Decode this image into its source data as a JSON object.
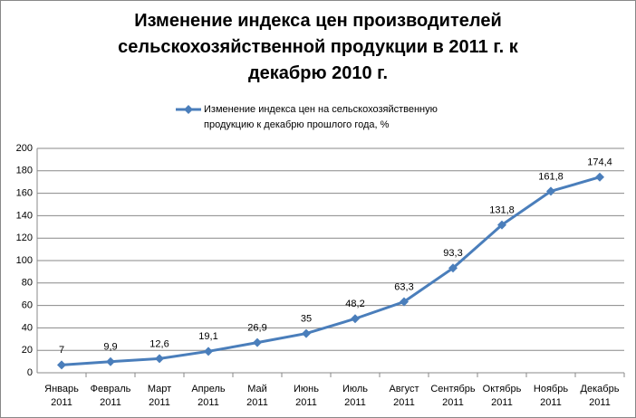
{
  "chart_data": {
    "type": "line",
    "title": "Изменение индекса цен производителей сельскохозяйственной продукции в 2011 г. к декабрю 2010 г.",
    "categories": [
      "Январь 2011",
      "Февраль 2011",
      "Март 2011",
      "Апрель 2011",
      "Май 2011",
      "Июнь 2011",
      "Июль 2011",
      "Август 2011",
      "Сентябрь 2011",
      "Октябрь 2011",
      "Ноябрь 2011",
      "Декабрь 2011"
    ],
    "series": [
      {
        "name": "Изменение  индекса цен на сельскохозяйственную продукцию  к декабрю прошлого года, %",
        "color": "#4a7ebb",
        "values": [
          7,
          9.9,
          12.6,
          19.1,
          26.9,
          35,
          48.2,
          63.3,
          93.3,
          131.8,
          161.8,
          174.4
        ],
        "value_labels": [
          "7",
          "9,9",
          "12,6",
          "19,1",
          "26,9",
          "35",
          "48,2",
          "63,3",
          "93,3",
          "131,8",
          "161,8",
          "174,4"
        ]
      }
    ],
    "ylim": [
      0,
      200
    ],
    "yticks": [
      0,
      20,
      40,
      60,
      80,
      100,
      120,
      140,
      160,
      180,
      200
    ],
    "grid": true,
    "legend": "top"
  }
}
